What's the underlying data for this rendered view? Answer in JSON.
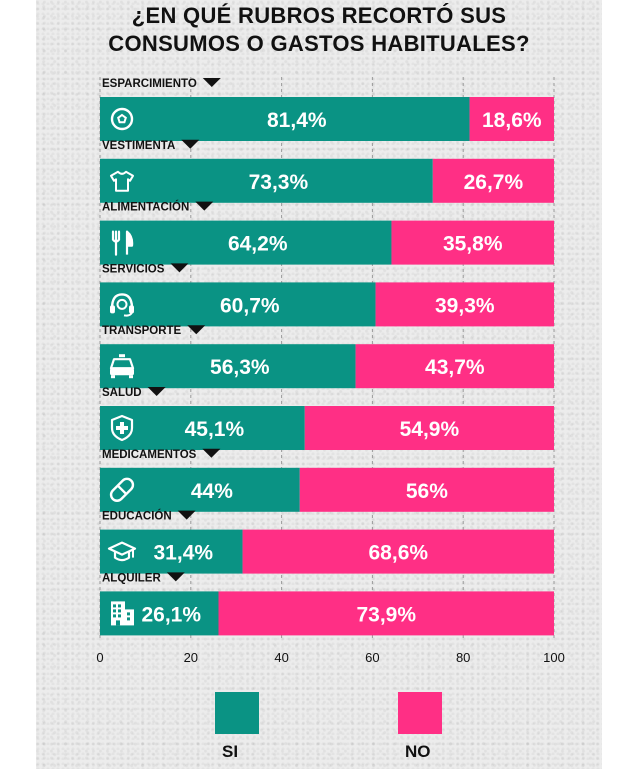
{
  "title_lines": [
    "¿EN QUÉ RUBROS RECORTÓ SUS",
    "CONSUMOS O GASTOS HABITUALES?"
  ],
  "colors": {
    "si": "#0a9384",
    "no": "#ff2f85"
  },
  "chart_data": {
    "type": "bar",
    "orientation": "horizontal",
    "stacked": true,
    "categories": [
      "ESPARCIMIENTO",
      "VESTIMENTA",
      "ALIMENTACIÓN",
      "SERVICIOS",
      "TRANSPORTE",
      "SALUD",
      "MEDICAMENTOS",
      "EDUCACIÓN",
      "ALQUILER"
    ],
    "icons": [
      "soccer-ball-icon",
      "tshirt-icon",
      "fork-knife-icon",
      "headset-icon",
      "taxi-icon",
      "health-shield-icon",
      "pill-icon",
      "graduation-cap-icon",
      "building-icon"
    ],
    "series": [
      {
        "name": "SI",
        "values": [
          81.4,
          73.3,
          64.2,
          60.7,
          56.3,
          45.1,
          44,
          31.4,
          26.1
        ],
        "labels": [
          "81,4%",
          "73,3%",
          "64,2%",
          "60,7%",
          "56,3%",
          "45,1%",
          "44%",
          "31,4%",
          "26,1%"
        ]
      },
      {
        "name": "NO",
        "values": [
          18.6,
          26.7,
          35.8,
          39.3,
          43.7,
          54.9,
          56,
          68.6,
          73.9
        ],
        "labels": [
          "18,6%",
          "26,7%",
          "35,8%",
          "39,3%",
          "43,7%",
          "54,9%",
          "56%",
          "68,6%",
          "73,9%"
        ]
      }
    ],
    "xlim": [
      0,
      100
    ],
    "xticks": [
      "0",
      "20",
      "40",
      "60",
      "80",
      "100"
    ],
    "xtick_values": [
      0,
      20,
      40,
      60,
      80,
      100
    ],
    "grid": true,
    "legend_position": "bottom"
  }
}
